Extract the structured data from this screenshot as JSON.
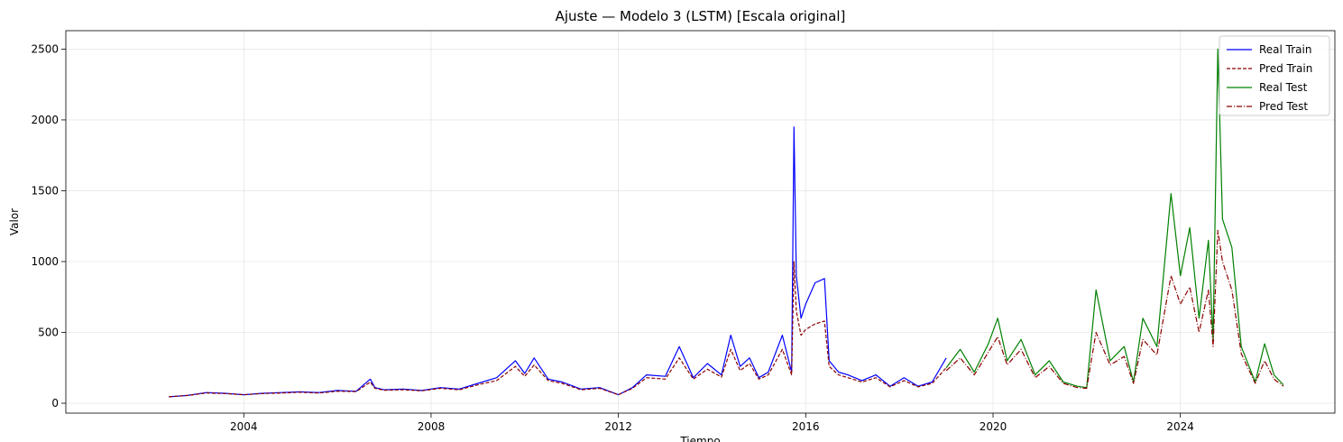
{
  "chart_data": {
    "type": "line",
    "title": "Ajuste — Modelo 3 (LSTM) [Escala original]",
    "xlabel": "Tiempo",
    "ylabel": "Valor",
    "xlim": [
      2000.2,
      2027.3
    ],
    "ylim": [
      -70,
      2630
    ],
    "x_ticks": [
      2004,
      2008,
      2012,
      2016,
      2020,
      2024
    ],
    "x_tick_labels": [
      "2004",
      "2008",
      "2012",
      "2016",
      "2020",
      "2024"
    ],
    "y_ticks": [
      0,
      500,
      1000,
      1500,
      2000,
      2500
    ],
    "y_tick_labels": [
      "0",
      "500",
      "1000",
      "1500",
      "2000",
      "2500"
    ],
    "grid": true,
    "legend_position": "top-right",
    "series": [
      {
        "name": "Real Train",
        "color": "#0000ff",
        "style": "solid",
        "x": [
          2002.4,
          2002.8,
          2003.2,
          2003.6,
          2004.0,
          2004.4,
          2004.8,
          2005.2,
          2005.6,
          2006.0,
          2006.4,
          2006.7,
          2006.8,
          2007.0,
          2007.4,
          2007.8,
          2008.2,
          2008.6,
          2009.0,
          2009.4,
          2009.8,
          2010.0,
          2010.2,
          2010.5,
          2010.8,
          2011.2,
          2011.6,
          2012.0,
          2012.3,
          2012.6,
          2013.0,
          2013.3,
          2013.6,
          2013.9,
          2014.2,
          2014.4,
          2014.6,
          2014.8,
          2015.0,
          2015.2,
          2015.5,
          2015.7,
          2015.75,
          2015.8,
          2015.9,
          2016.0,
          2016.2,
          2016.4,
          2016.5,
          2016.7,
          2016.9,
          2017.2,
          2017.5,
          2017.8,
          2018.1,
          2018.4,
          2018.7,
          2019.0
        ],
        "y": [
          45,
          55,
          75,
          70,
          60,
          70,
          75,
          80,
          75,
          90,
          85,
          170,
          110,
          95,
          100,
          90,
          110,
          100,
          140,
          180,
          300,
          210,
          320,
          170,
          150,
          100,
          110,
          60,
          110,
          200,
          190,
          400,
          180,
          280,
          200,
          480,
          260,
          320,
          180,
          220,
          480,
          220,
          1950,
          900,
          600,
          700,
          850,
          880,
          300,
          220,
          200,
          160,
          200,
          120,
          180,
          120,
          150,
          320
        ]
      },
      {
        "name": "Pred Train",
        "color": "#8b0000",
        "style": "dashed",
        "x": [
          2002.4,
          2002.8,
          2003.2,
          2003.6,
          2004.0,
          2004.4,
          2004.8,
          2005.2,
          2005.6,
          2006.0,
          2006.4,
          2006.7,
          2006.8,
          2007.0,
          2007.4,
          2007.8,
          2008.2,
          2008.6,
          2009.0,
          2009.4,
          2009.8,
          2010.0,
          2010.2,
          2010.5,
          2010.8,
          2011.2,
          2011.6,
          2012.0,
          2012.3,
          2012.6,
          2013.0,
          2013.3,
          2013.6,
          2013.9,
          2014.2,
          2014.4,
          2014.6,
          2014.8,
          2015.0,
          2015.2,
          2015.5,
          2015.7,
          2015.75,
          2015.8,
          2015.9,
          2016.0,
          2016.2,
          2016.4,
          2016.5,
          2016.7,
          2016.9,
          2017.2,
          2017.5,
          2017.8,
          2018.1,
          2018.4,
          2018.7,
          2019.0
        ],
        "y": [
          45,
          55,
          72,
          68,
          60,
          68,
          72,
          78,
          72,
          85,
          82,
          150,
          105,
          92,
          95,
          88,
          105,
          95,
          130,
          160,
          260,
          190,
          270,
          160,
          140,
          95,
          105,
          60,
          105,
          180,
          170,
          320,
          170,
          240,
          185,
          380,
          230,
          280,
          170,
          200,
          380,
          200,
          1000,
          650,
          480,
          520,
          560,
          580,
          260,
          200,
          180,
          150,
          180,
          115,
          160,
          115,
          140,
          250
        ]
      },
      {
        "name": "Real Test",
        "color": "#008000",
        "style": "solid",
        "x": [
          2019.0,
          2019.3,
          2019.6,
          2019.9,
          2020.1,
          2020.3,
          2020.6,
          2020.9,
          2021.2,
          2021.5,
          2021.8,
          2022.0,
          2022.2,
          2022.5,
          2022.8,
          2023.0,
          2023.2,
          2023.5,
          2023.8,
          2024.0,
          2024.2,
          2024.4,
          2024.6,
          2024.7,
          2024.8,
          2024.9,
          2025.1,
          2025.3,
          2025.6,
          2025.8,
          2026.0,
          2026.2
        ],
        "y": [
          250,
          380,
          220,
          420,
          600,
          300,
          450,
          200,
          300,
          150,
          120,
          110,
          800,
          300,
          400,
          150,
          600,
          400,
          1480,
          900,
          1240,
          600,
          1150,
          450,
          2500,
          1300,
          1100,
          400,
          150,
          420,
          200,
          130
        ]
      },
      {
        "name": "Pred Test",
        "color": "#8b0000",
        "style": "dashdot",
        "x": [
          2019.0,
          2019.3,
          2019.6,
          2019.9,
          2020.1,
          2020.3,
          2020.6,
          2020.9,
          2021.2,
          2021.5,
          2021.8,
          2022.0,
          2022.2,
          2022.5,
          2022.8,
          2023.0,
          2023.2,
          2023.5,
          2023.8,
          2024.0,
          2024.2,
          2024.4,
          2024.6,
          2024.7,
          2024.8,
          2024.9,
          2025.1,
          2025.3,
          2025.6,
          2025.8,
          2026.0,
          2026.2
        ],
        "y": [
          230,
          320,
          200,
          360,
          470,
          270,
          380,
          180,
          260,
          140,
          110,
          105,
          500,
          270,
          330,
          140,
          450,
          340,
          900,
          700,
          820,
          500,
          800,
          400,
          1220,
          1000,
          800,
          350,
          140,
          300,
          170,
          120
        ]
      }
    ]
  }
}
